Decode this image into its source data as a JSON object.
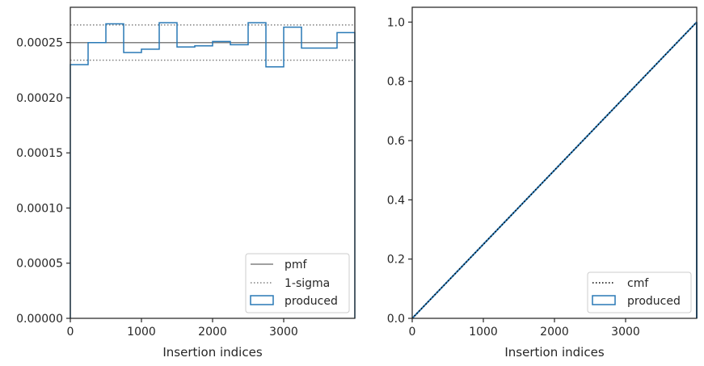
{
  "chart_data": [
    {
      "type": "histogram",
      "xlabel": "Insertion indices",
      "ylabel": "",
      "xlim": [
        0,
        4000
      ],
      "ylim": [
        0,
        0.000282
      ],
      "xticks": [
        0,
        1000,
        2000,
        3000
      ],
      "xtick_labels": [
        "0",
        "1000",
        "2000",
        "3000"
      ],
      "yticks": [
        0,
        5e-05,
        0.0001,
        0.00015,
        0.0002,
        0.00025
      ],
      "ytick_labels": [
        "0.00000",
        "0.00005",
        "0.00010",
        "0.00015",
        "0.00020",
        "0.00025"
      ],
      "grid": false,
      "legend_position": "lower-right",
      "legend": [
        "pmf",
        "1-sigma",
        "produced"
      ],
      "pmf_value": 0.00025,
      "sigma_upper": 0.000266,
      "sigma_lower": 0.000234,
      "bin_edges": [
        0,
        250,
        500,
        750,
        1000,
        1250,
        1500,
        1750,
        2000,
        2250,
        2500,
        2750,
        3000,
        3250,
        3500,
        3750,
        4000
      ],
      "series": [
        {
          "name": "produced",
          "values": [
            0.00023,
            0.00025,
            0.000267,
            0.000241,
            0.000244,
            0.000268,
            0.000246,
            0.000247,
            0.000251,
            0.000248,
            0.000268,
            0.000228,
            0.000264,
            0.000245,
            0.000245,
            0.000259
          ]
        }
      ],
      "colors": {
        "produced": "#2878b5",
        "pmf": "#808080",
        "sigma": "#808080"
      }
    },
    {
      "type": "step",
      "xlabel": "Insertion indices",
      "ylabel": "",
      "xlim": [
        0,
        4000
      ],
      "ylim": [
        0,
        1.05
      ],
      "xticks": [
        0,
        1000,
        2000,
        3000
      ],
      "xtick_labels": [
        "0",
        "1000",
        "2000",
        "3000"
      ],
      "yticks": [
        0,
        0.2,
        0.4,
        0.6,
        0.8,
        1.0
      ],
      "ytick_labels": [
        "0.0",
        "0.2",
        "0.4",
        "0.6",
        "0.8",
        "1.0"
      ],
      "grid": false,
      "legend_position": "lower-right",
      "legend": [
        "cmf",
        "produced"
      ],
      "cmf": {
        "x": [
          0,
          4000
        ],
        "y": [
          0,
          1
        ]
      },
      "series": [
        {
          "name": "produced",
          "x": [
            0,
            4000
          ],
          "y": [
            0,
            1
          ]
        }
      ],
      "colors": {
        "produced": "#2878b5",
        "cmf": "#000000"
      }
    }
  ]
}
